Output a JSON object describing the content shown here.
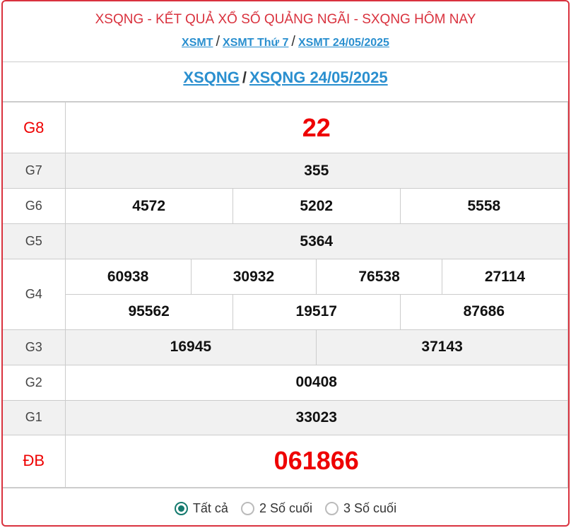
{
  "header": {
    "title": "XSQNG - KẾT QUẢ XỔ SỐ QUẢNG NGÃI - SXQNG HÔM NAY",
    "crumbs": [
      "XSMT",
      "XSMT Thứ 7",
      "XSMT 24/05/2025"
    ],
    "sub": [
      "XSQNG",
      "XSQNG 24/05/2025"
    ],
    "sep": "/"
  },
  "prizes": [
    {
      "label": "G8",
      "numbers": [
        "22"
      ]
    },
    {
      "label": "G7",
      "numbers": [
        "355"
      ]
    },
    {
      "label": "G6",
      "numbers": [
        "4572",
        "5202",
        "5558"
      ]
    },
    {
      "label": "G5",
      "numbers": [
        "5364"
      ]
    },
    {
      "label": "G4",
      "rows": [
        [
          "60938",
          "30932",
          "76538",
          "27114"
        ],
        [
          "95562",
          "19517",
          "87686"
        ]
      ]
    },
    {
      "label": "G3",
      "numbers": [
        "16945",
        "37143"
      ]
    },
    {
      "label": "G2",
      "numbers": [
        "00408"
      ]
    },
    {
      "label": "G1",
      "numbers": [
        "33023"
      ]
    },
    {
      "label": "ĐB",
      "numbers": [
        "061866"
      ]
    }
  ],
  "filter": {
    "options": [
      "Tất cả",
      "2 Số cuối",
      "3 Số cuối"
    ],
    "selected": "Tất cả"
  },
  "colors": {
    "accent": "#d9323e",
    "link": "#2a8fcf",
    "prize": "#ee0000",
    "radio": "#157a6e"
  }
}
